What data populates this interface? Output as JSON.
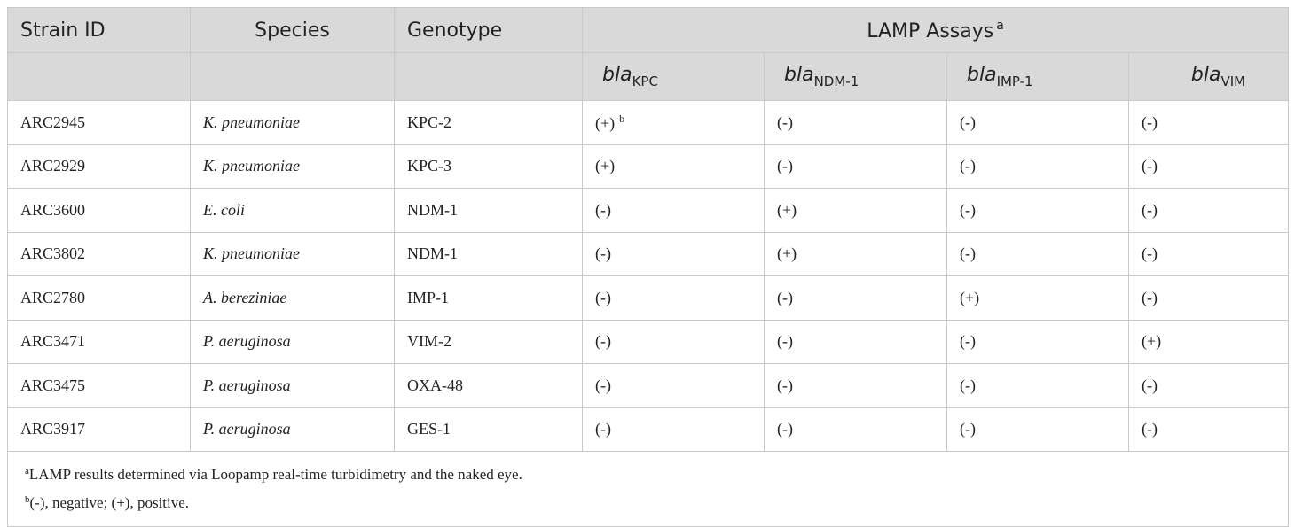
{
  "header": {
    "strain_id": "Strain ID",
    "species": "Species",
    "genotype": "Genotype",
    "lamp_assays": "LAMP Assays",
    "lamp_assays_mark": "a",
    "genes": [
      {
        "prefix": "bla",
        "sub": "KPC"
      },
      {
        "prefix": "bla",
        "sub": "NDM-1"
      },
      {
        "prefix": "bla",
        "sub": "IMP-1"
      },
      {
        "prefix": "bla",
        "sub": "VIM"
      }
    ]
  },
  "rows": [
    {
      "strain": "ARC2945",
      "species": "K. pneumoniae",
      "genotype": "KPC-2",
      "results": [
        "(+)",
        "(-)",
        "(-)",
        "(-)"
      ],
      "mark": "b"
    },
    {
      "strain": "ARC2929",
      "species": "K. pneumoniae",
      "genotype": "KPC-3",
      "results": [
        "(+)",
        "(-)",
        "(-)",
        "(-)"
      ]
    },
    {
      "strain": "ARC3600",
      "species": "E. coli",
      "genotype": "NDM-1",
      "results": [
        "(-)",
        "(+)",
        "(-)",
        "(-)"
      ]
    },
    {
      "strain": "ARC3802",
      "species": "K. pneumoniae",
      "genotype": "NDM-1",
      "results": [
        "(-)",
        "(+)",
        "(-)",
        "(-)"
      ]
    },
    {
      "strain": "ARC2780",
      "species": "A. bereziniae",
      "genotype": "IMP-1",
      "results": [
        "(-)",
        "(-)",
        "(+)",
        "(-)"
      ]
    },
    {
      "strain": "ARC3471",
      "species": "P. aeruginosa",
      "genotype": "VIM-2",
      "results": [
        "(-)",
        "(-)",
        "(-)",
        "(+)"
      ]
    },
    {
      "strain": "ARC3475",
      "species": "P. aeruginosa",
      "genotype": "OXA-48",
      "results": [
        "(-)",
        "(-)",
        "(-)",
        "(-)"
      ]
    },
    {
      "strain": "ARC3917",
      "species": "P. aeruginosa",
      "genotype": "GES-1",
      "results": [
        "(-)",
        "(-)",
        "(-)",
        "(-)"
      ]
    }
  ],
  "footnotes": [
    {
      "mark": "a",
      "text": "LAMP results determined via Loopamp real-time turbidimetry and the naked eye."
    },
    {
      "mark": "b",
      "text": "(-), negative; (+), positive."
    }
  ],
  "colors": {
    "header_bg": "#d9d9d9",
    "border": "#c9c9c9"
  }
}
